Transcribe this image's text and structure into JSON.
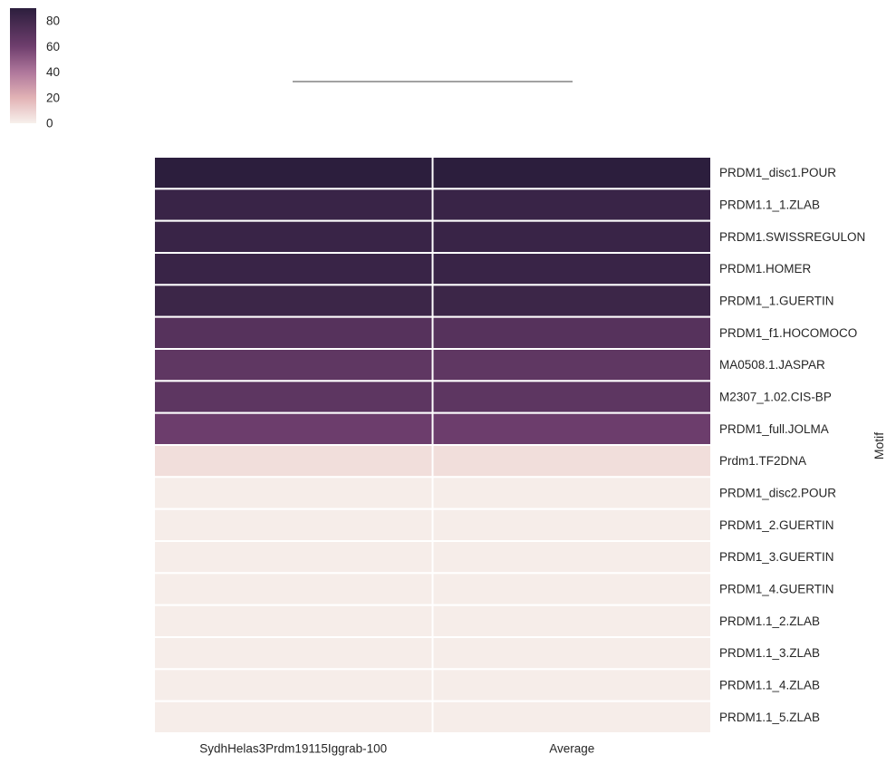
{
  "chart_data": {
    "type": "heatmap",
    "title": "",
    "xlabel": "",
    "ylabel": "Motif",
    "columns": [
      "SydhHelas3Prdm19115Iggrab-100",
      "Average"
    ],
    "rows": [
      "PRDM1_disc1.POUR",
      "PRDM1.1_1.ZLAB",
      "PRDM1.SWISSREGULON",
      "PRDM1.HOMER",
      "PRDM1_1.GUERTIN",
      "PRDM1_f1.HOCOMOCO",
      "MA0508.1.JASPAR",
      "M2307_1.02.CIS-BP",
      "PRDM1_full.JOLMA",
      "Prdm1.TF2DNA",
      "PRDM1_disc2.POUR",
      "PRDM1_2.GUERTIN",
      "PRDM1_3.GUERTIN",
      "PRDM1_4.GUERTIN",
      "PRDM1.1_2.ZLAB",
      "PRDM1.1_3.ZLAB",
      "PRDM1.1_4.ZLAB",
      "PRDM1.1_5.ZLAB"
    ],
    "values": [
      [
        90,
        90
      ],
      [
        84,
        84
      ],
      [
        84,
        84
      ],
      [
        84,
        84
      ],
      [
        83,
        83
      ],
      [
        71,
        71
      ],
      [
        67,
        67
      ],
      [
        68,
        68
      ],
      [
        61,
        61
      ],
      [
        6,
        6
      ],
      [
        1,
        1
      ],
      [
        1,
        1
      ],
      [
        1,
        1
      ],
      [
        1,
        1
      ],
      [
        1,
        1
      ],
      [
        1,
        1
      ],
      [
        1,
        1
      ],
      [
        1,
        1
      ]
    ],
    "colorbar": {
      "range": [
        0,
        90
      ],
      "ticks": [
        "0",
        "20",
        "40",
        "60",
        "80"
      ],
      "colors": [
        "#f7f0ec",
        "#e2b3b5",
        "#b0789c",
        "#6e3e6d",
        "#2c1e3d"
      ]
    }
  }
}
